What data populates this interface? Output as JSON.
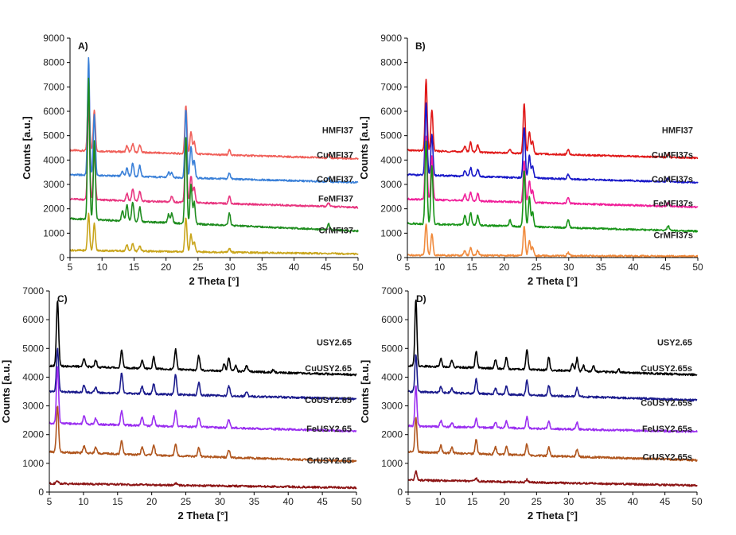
{
  "chart_data": [
    {
      "type": "line",
      "panel_label": "A)",
      "xlabel": "2 Theta [°]",
      "ylabel": "Counts [a.u.]",
      "xlim": [
        5,
        50
      ],
      "ylim": [
        0,
        9000
      ],
      "x_ticks": [
        5,
        10,
        15,
        20,
        25,
        30,
        35,
        40,
        45,
        50
      ],
      "y_ticks": [
        0,
        1000,
        2000,
        3000,
        4000,
        5000,
        6000,
        7000,
        8000,
        9000
      ],
      "grid": false,
      "legend": "inline labels at right end of each trace",
      "series": [
        {
          "name": "HMFI37",
          "color": "#f0605a",
          "baseline": 4400,
          "end": 4050,
          "peaks": [
            [
              7.9,
              2900
            ],
            [
              8.8,
              1700
            ],
            [
              13.9,
              250
            ],
            [
              14.8,
              350
            ],
            [
              15.9,
              300
            ],
            [
              23.1,
              2000
            ],
            [
              23.9,
              900
            ],
            [
              24.4,
              500
            ],
            [
              29.9,
              200
            ],
            [
              45.4,
              120
            ]
          ]
        },
        {
          "name": "CuMFI37",
          "color": "#3a80d8",
          "baseline": 3400,
          "end": 3080,
          "peaks": [
            [
              7.9,
              4800
            ],
            [
              8.8,
              2500
            ],
            [
              13.2,
              200
            ],
            [
              13.9,
              350
            ],
            [
              14.8,
              550
            ],
            [
              15.9,
              450
            ],
            [
              20.4,
              200
            ],
            [
              20.9,
              200
            ],
            [
              23.1,
              2800
            ],
            [
              23.9,
              1300
            ],
            [
              24.4,
              700
            ],
            [
              29.9,
              250
            ],
            [
              45.4,
              150
            ]
          ]
        },
        {
          "name": "CoMFI37",
          "color": "#e8357f",
          "baseline": 2400,
          "end": 2060,
          "peaks": [
            [
              7.9,
              4000
            ],
            [
              8.8,
              2000
            ],
            [
              13.9,
              300
            ],
            [
              14.8,
              500
            ],
            [
              15.9,
              400
            ],
            [
              20.9,
              250
            ],
            [
              23.1,
              2600
            ],
            [
              23.9,
              1100
            ],
            [
              24.4,
              600
            ],
            [
              29.9,
              300
            ],
            [
              45.4,
              150
            ]
          ]
        },
        {
          "name": "FeMFI37",
          "color": "#1e8c1e",
          "baseline": 1600,
          "end": 1090,
          "peaks": [
            [
              7.9,
              5800
            ],
            [
              8.8,
              3200
            ],
            [
              13.2,
              400
            ],
            [
              13.9,
              650
            ],
            [
              14.8,
              800
            ],
            [
              15.9,
              600
            ],
            [
              20.4,
              350
            ],
            [
              20.9,
              400
            ],
            [
              23.1,
              3600
            ],
            [
              23.9,
              1600
            ],
            [
              24.4,
              900
            ],
            [
              29.9,
              500
            ],
            [
              45.4,
              250
            ]
          ]
        },
        {
          "name": "CrMFI37",
          "color": "#c9a51c",
          "baseline": 300,
          "end": 150,
          "peaks": [
            [
              7.9,
              1500
            ],
            [
              8.8,
              1100
            ],
            [
              13.9,
              250
            ],
            [
              14.8,
              300
            ],
            [
              15.9,
              200
            ],
            [
              23.1,
              1400
            ],
            [
              23.9,
              700
            ],
            [
              24.4,
              400
            ],
            [
              29.9,
              150
            ]
          ]
        }
      ]
    },
    {
      "type": "line",
      "panel_label": "B)",
      "xlabel": "2 Theta [°]",
      "ylabel": "Counts [a.u.]",
      "xlim": [
        5,
        50
      ],
      "ylim": [
        0,
        9000
      ],
      "x_ticks": [
        5,
        10,
        15,
        20,
        25,
        30,
        35,
        40,
        45,
        50
      ],
      "y_ticks": [
        0,
        1000,
        2000,
        3000,
        4000,
        5000,
        6000,
        7000,
        8000,
        9000
      ],
      "grid": false,
      "legend": "inline labels at right end of each trace",
      "series": [
        {
          "name": "HMFI37",
          "color": "#e01818",
          "baseline": 4400,
          "end": 4080,
          "peaks": [
            [
              7.9,
              2900
            ],
            [
              8.8,
              1700
            ],
            [
              13.9,
              250
            ],
            [
              14.8,
              400
            ],
            [
              15.9,
              300
            ],
            [
              20.9,
              150
            ],
            [
              23.1,
              2050
            ],
            [
              23.9,
              900
            ],
            [
              24.4,
              500
            ],
            [
              29.9,
              200
            ],
            [
              45.4,
              150
            ]
          ]
        },
        {
          "name": "CuMFI37s",
          "color": "#1818c8",
          "baseline": 3400,
          "end": 3080,
          "peaks": [
            [
              7.9,
              2950
            ],
            [
              8.8,
              1650
            ],
            [
              13.9,
              250
            ],
            [
              14.8,
              350
            ],
            [
              15.9,
              300
            ],
            [
              23.1,
              2100
            ],
            [
              23.9,
              900
            ],
            [
              24.4,
              500
            ],
            [
              29.9,
              200
            ],
            [
              45.4,
              150
            ]
          ]
        },
        {
          "name": "CoMFI37s",
          "color": "#f0209a",
          "baseline": 2400,
          "end": 2070,
          "peaks": [
            [
              7.9,
              2600
            ],
            [
              8.8,
              1800
            ],
            [
              13.9,
              250
            ],
            [
              14.8,
              350
            ],
            [
              15.9,
              300
            ],
            [
              23.1,
              1700
            ],
            [
              23.9,
              900
            ],
            [
              24.4,
              500
            ],
            [
              29.9,
              250
            ],
            [
              45.4,
              150
            ]
          ]
        },
        {
          "name": "FeMFI37s",
          "color": "#189418",
          "baseline": 1400,
          "end": 1080,
          "peaks": [
            [
              7.9,
              3400
            ],
            [
              8.8,
              2400
            ],
            [
              13.9,
              400
            ],
            [
              14.8,
              500
            ],
            [
              15.9,
              400
            ],
            [
              20.9,
              250
            ],
            [
              23.1,
              2300
            ],
            [
              23.9,
              1200
            ],
            [
              24.4,
              600
            ],
            [
              29.9,
              350
            ],
            [
              45.4,
              200
            ]
          ]
        },
        {
          "name": "CrMFI37s",
          "color": "#f08a3c",
          "baseline": 100,
          "end": 50,
          "peaks": [
            [
              7.9,
              1300
            ],
            [
              8.8,
              900
            ],
            [
              13.9,
              200
            ],
            [
              14.8,
              300
            ],
            [
              15.9,
              200
            ],
            [
              23.1,
              1200
            ],
            [
              23.9,
              600
            ],
            [
              24.4,
              350
            ],
            [
              29.9,
              150
            ]
          ]
        }
      ]
    },
    {
      "type": "line",
      "panel_label": "C)",
      "xlabel": "2 Theta [°]",
      "ylabel": "Counts [a.u.]",
      "xlim": [
        5,
        50
      ],
      "ylim": [
        0,
        7000
      ],
      "x_ticks": [
        5,
        10,
        15,
        20,
        25,
        30,
        35,
        40,
        45,
        50
      ],
      "y_ticks": [
        0,
        1000,
        2000,
        3000,
        4000,
        5000,
        6000,
        7000
      ],
      "grid": false,
      "legend": "inline labels at right end of each trace",
      "series": [
        {
          "name": "USY2.65",
          "color": "#000000",
          "baseline": 4400,
          "end": 4080,
          "peaks": [
            [
              6.2,
              2300
            ],
            [
              10.1,
              300
            ],
            [
              11.8,
              250
            ],
            [
              15.6,
              600
            ],
            [
              18.6,
              300
            ],
            [
              20.3,
              400
            ],
            [
              23.5,
              700
            ],
            [
              26.9,
              500
            ],
            [
              30.6,
              250
            ],
            [
              31.3,
              450
            ],
            [
              32.3,
              200
            ],
            [
              33.9,
              200
            ],
            [
              37.8,
              100
            ]
          ]
        },
        {
          "name": "CuUSY2.65",
          "color": "#1a1a8c",
          "baseline": 3500,
          "end": 3240,
          "peaks": [
            [
              6.2,
              1500
            ],
            [
              10.1,
              250
            ],
            [
              11.8,
              200
            ],
            [
              15.6,
              700
            ],
            [
              18.6,
              250
            ],
            [
              20.3,
              350
            ],
            [
              23.5,
              700
            ],
            [
              26.9,
              450
            ],
            [
              31.3,
              350
            ],
            [
              33.9,
              150
            ]
          ]
        },
        {
          "name": "CoUSY2.65",
          "color": "#9a2ef0",
          "baseline": 2400,
          "end": 2120,
          "peaks": [
            [
              6.2,
              2000
            ],
            [
              10.1,
              300
            ],
            [
              11.8,
              200
            ],
            [
              15.6,
              500
            ],
            [
              18.6,
              300
            ],
            [
              20.3,
              350
            ],
            [
              23.5,
              550
            ],
            [
              26.9,
              350
            ],
            [
              31.3,
              300
            ]
          ]
        },
        {
          "name": "FeUSY2.65",
          "color": "#b0561e",
          "baseline": 1400,
          "end": 1070,
          "peaks": [
            [
              6.2,
              1600
            ],
            [
              10.1,
              250
            ],
            [
              11.8,
              200
            ],
            [
              15.6,
              450
            ],
            [
              18.6,
              250
            ],
            [
              20.3,
              350
            ],
            [
              23.5,
              400
            ],
            [
              26.9,
              300
            ],
            [
              31.3,
              250
            ]
          ]
        },
        {
          "name": "CrUSY2.65",
          "color": "#8c1414",
          "baseline": 300,
          "end": 150,
          "peaks": [
            [
              6.2,
              80
            ],
            [
              23.5,
              80
            ]
          ]
        }
      ]
    },
    {
      "type": "line",
      "panel_label": "D)",
      "xlabel": "2 Theta [°]",
      "ylabel": "Counts [a.u.]",
      "xlim": [
        5,
        50
      ],
      "ylim": [
        0,
        7000
      ],
      "x_ticks": [
        5,
        10,
        15,
        20,
        25,
        30,
        35,
        40,
        45,
        50
      ],
      "y_ticks": [
        0,
        1000,
        2000,
        3000,
        4000,
        5000,
        6000,
        7000
      ],
      "grid": false,
      "legend": "inline labels at right end of each trace",
      "series": [
        {
          "name": "USY2.65",
          "color": "#000000",
          "baseline": 4400,
          "end": 4080,
          "peaks": [
            [
              6.2,
              2300
            ],
            [
              10.1,
              300
            ],
            [
              11.8,
              250
            ],
            [
              15.6,
              600
            ],
            [
              18.6,
              300
            ],
            [
              20.3,
              400
            ],
            [
              23.5,
              700
            ],
            [
              26.9,
              450
            ],
            [
              30.6,
              250
            ],
            [
              31.3,
              450
            ],
            [
              32.3,
              200
            ],
            [
              33.9,
              200
            ],
            [
              37.8,
              100
            ]
          ]
        },
        {
          "name": "CuUSY2.65s",
          "color": "#1a1a8c",
          "baseline": 3500,
          "end": 3200,
          "peaks": [
            [
              6.2,
              1300
            ],
            [
              10.1,
              200
            ],
            [
              11.8,
              150
            ],
            [
              15.6,
              500
            ],
            [
              18.6,
              200
            ],
            [
              20.3,
              300
            ],
            [
              23.5,
              500
            ],
            [
              26.9,
              350
            ],
            [
              31.3,
              300
            ]
          ]
        },
        {
          "name": "CoUSY2.65s",
          "color": "#9a2ef0",
          "baseline": 2300,
          "end": 2100,
          "peaks": [
            [
              6.2,
              1400
            ],
            [
              10.1,
              200
            ],
            [
              11.8,
              150
            ],
            [
              15.6,
              300
            ],
            [
              18.6,
              200
            ],
            [
              20.3,
              250
            ],
            [
              23.5,
              400
            ],
            [
              26.9,
              250
            ],
            [
              31.3,
              250
            ]
          ]
        },
        {
          "name": "FeUSY2.65s",
          "color": "#b0561e",
          "baseline": 1400,
          "end": 1110,
          "peaks": [
            [
              6.2,
              1200
            ],
            [
              10.1,
              250
            ],
            [
              11.8,
              200
            ],
            [
              15.6,
              500
            ],
            [
              18.6,
              250
            ],
            [
              20.3,
              300
            ],
            [
              23.5,
              400
            ],
            [
              26.9,
              300
            ],
            [
              31.3,
              250
            ]
          ]
        },
        {
          "name": "CrUSY2.65s",
          "color": "#8c1414",
          "baseline": 420,
          "end": 230,
          "peaks": [
            [
              6.2,
              300
            ],
            [
              15.6,
              100
            ],
            [
              23.5,
              100
            ]
          ]
        }
      ]
    }
  ]
}
